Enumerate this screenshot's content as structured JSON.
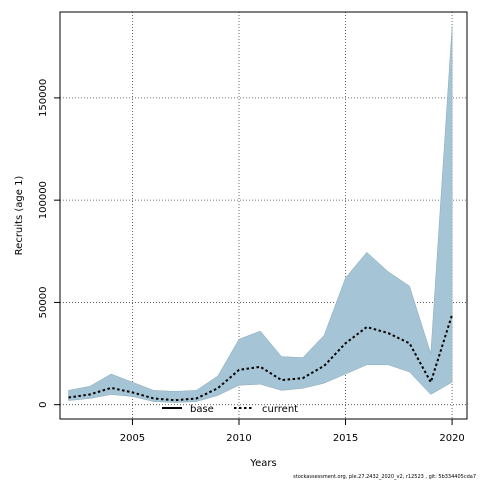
{
  "chart_data": {
    "type": "line",
    "xlabel": "Years",
    "ylabel": "Recruits (age 1)",
    "xlim": [
      2001.6,
      2020.7
    ],
    "ylim": [
      -7000,
      192000
    ],
    "x_ticks": [
      2005,
      2010,
      2015,
      2020
    ],
    "y_ticks": [
      0,
      50000,
      100000,
      150000
    ],
    "x_tick_labels": [
      "2005",
      "2010",
      "2015",
      "2020"
    ],
    "y_tick_labels": [
      "0",
      "50000",
      "100000",
      "150000"
    ],
    "grid": true,
    "legend_position": "bottom-center",
    "x": [
      2002,
      2003,
      2004,
      2005,
      2006,
      2007,
      2008,
      2009,
      2010,
      2011,
      2012,
      2013,
      2014,
      2015,
      2016,
      2017,
      2018,
      2019,
      2020
    ],
    "series": [
      {
        "name": "current",
        "style": "dotted",
        "color": "#000000",
        "values": [
          3500,
          5000,
          8200,
          6000,
          3000,
          2200,
          3000,
          8000,
          17000,
          18500,
          12000,
          13000,
          19000,
          30000,
          38000,
          35000,
          30000,
          11000,
          44000
        ]
      }
    ],
    "band": {
      "color": "#a5c5d6",
      "lower": [
        2000,
        3000,
        5000,
        4000,
        1500,
        1000,
        1500,
        4500,
        9500,
        10000,
        7000,
        8000,
        10500,
        15000,
        19500,
        19500,
        16000,
        5000,
        11000
      ],
      "upper": [
        7000,
        9000,
        15000,
        11000,
        7000,
        6500,
        7000,
        14000,
        32000,
        36000,
        23500,
        23000,
        34000,
        62000,
        74500,
        65000,
        58000,
        25000,
        185000
      ]
    },
    "legend": [
      {
        "label": "base",
        "style": "solid"
      },
      {
        "label": "current",
        "style": "dotted"
      }
    ],
    "footer": "stockassessment.org, ple.27.2432_2020_v2, r12523 , git: 5b334405cda7"
  }
}
